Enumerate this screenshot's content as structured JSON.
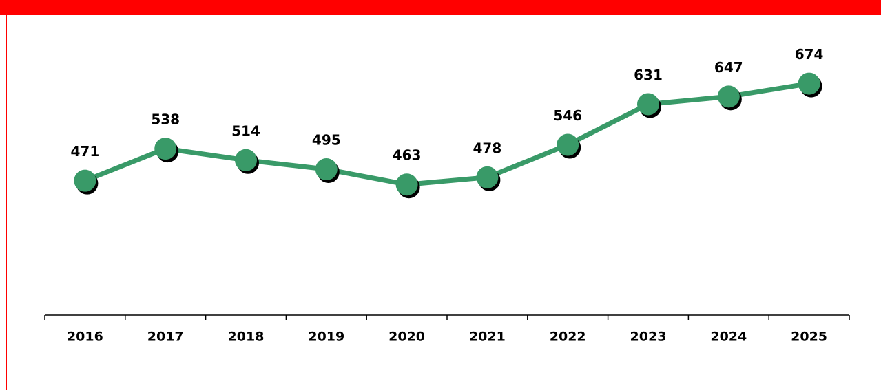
{
  "chart_data": {
    "type": "line",
    "categories": [
      "2016",
      "2017",
      "2018",
      "2019",
      "2020",
      "2021",
      "2022",
      "2023",
      "2024",
      "2025"
    ],
    "values": [
      471,
      538,
      514,
      495,
      463,
      478,
      546,
      631,
      647,
      674
    ],
    "color": "#399a68",
    "ylim": [
      190,
      800
    ]
  }
}
